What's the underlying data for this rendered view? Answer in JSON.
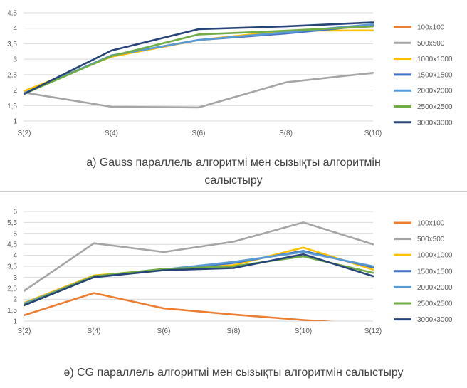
{
  "chart_data": [
    {
      "type": "line",
      "title": "а) Gauss параллель алгоритмі мен сызықты алгоритмін салыстыру",
      "categories": [
        "S(2)",
        "S(4)",
        "S(6)",
        "S(8)",
        "S(10)"
      ],
      "yticks": [
        "1",
        "1,5",
        "2",
        "2,5",
        "3",
        "3,5",
        "4",
        "4,5"
      ],
      "ylim": [
        1,
        4.5
      ],
      "grid": true,
      "legend": "right",
      "series": [
        {
          "name": "100x100",
          "color": "#ED7D31",
          "values": [
            null,
            null,
            null,
            null,
            null
          ]
        },
        {
          "name": "500x500",
          "color": "#A5A5A5",
          "values": [
            1.92,
            1.46,
            1.44,
            2.25,
            2.56
          ]
        },
        {
          "name": "1000x1000",
          "color": "#FFC000",
          "values": [
            1.97,
            3.08,
            3.62,
            3.92,
            3.93
          ]
        },
        {
          "name": "1500x1500",
          "color": "#4472C4",
          "values": [
            1.9,
            3.12,
            3.62,
            3.83,
            4.1
          ]
        },
        {
          "name": "2000x2000",
          "color": "#5B9BD5",
          "values": [
            1.9,
            3.12,
            3.62,
            3.87,
            4.13
          ]
        },
        {
          "name": "2500x2500",
          "color": "#70AD47",
          "values": [
            1.88,
            3.1,
            3.8,
            3.92,
            4.06
          ]
        },
        {
          "name": "3000x3000",
          "color": "#264478",
          "values": [
            1.88,
            3.28,
            3.97,
            4.06,
            4.19
          ]
        }
      ]
    },
    {
      "type": "line",
      "title": "ә) CG параллель алгоритмі мен сызықты алгоритмін салыстыру",
      "categories": [
        "S(2)",
        "S(4)",
        "S(6)",
        "S(8)",
        "S(10)",
        "S(12)"
      ],
      "yticks": [
        "1",
        "1,5",
        "2",
        "2,5",
        "3",
        "3,5",
        "4",
        "4,5",
        "5",
        "5,5",
        "6"
      ],
      "ylim": [
        1,
        6
      ],
      "grid": true,
      "legend": "right",
      "series": [
        {
          "name": "100x100",
          "color": "#ED7D31",
          "values": [
            1.27,
            2.28,
            1.58,
            1.3,
            1.05,
            0.85
          ]
        },
        {
          "name": "500x500",
          "color": "#A5A5A5",
          "values": [
            2.38,
            4.55,
            4.15,
            4.62,
            5.5,
            4.5
          ]
        },
        {
          "name": "1000x1000",
          "color": "#FFC000",
          "values": [
            1.83,
            3.08,
            3.35,
            3.55,
            4.35,
            3.35
          ]
        },
        {
          "name": "1500x1500",
          "color": "#4472C4",
          "values": [
            1.78,
            3.05,
            3.35,
            3.65,
            4.2,
            3.45
          ]
        },
        {
          "name": "2000x2000",
          "color": "#5B9BD5",
          "values": [
            1.8,
            3.03,
            3.35,
            3.7,
            4.15,
            3.5
          ]
        },
        {
          "name": "2500x2500",
          "color": "#70AD47",
          "values": [
            1.75,
            3.05,
            3.38,
            3.5,
            3.95,
            3.2
          ]
        },
        {
          "name": "3000x3000",
          "color": "#264478",
          "values": [
            1.72,
            3.0,
            3.32,
            3.42,
            4.05,
            3.05
          ]
        }
      ]
    }
  ]
}
